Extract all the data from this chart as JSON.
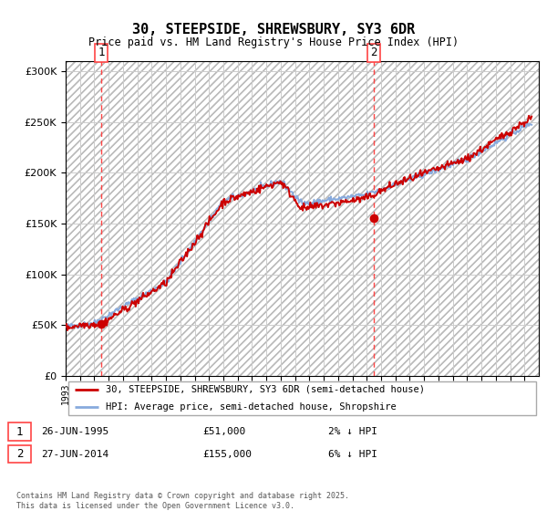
{
  "title": "30, STEEPSIDE, SHREWSBURY, SY3 6DR",
  "subtitle": "Price paid vs. HM Land Registry's House Price Index (HPI)",
  "ylim": [
    0,
    310000
  ],
  "yticks": [
    0,
    50000,
    100000,
    150000,
    200000,
    250000,
    300000
  ],
  "hatch_color": "#cccccc",
  "grid_color": "#dddddd",
  "bg_color": "#dce6f5",
  "sale1_year": 1995.48,
  "sale1_price": 51000,
  "sale2_year": 2014.48,
  "sale2_price": 155000,
  "vline_color": "#ff4444",
  "marker_color": "#cc0000",
  "legend_house_label": "30, STEEPSIDE, SHREWSBURY, SY3 6DR (semi-detached house)",
  "legend_hpi_label": "HPI: Average price, semi-detached house, Shropshire",
  "house_line_color": "#cc0000",
  "hpi_line_color": "#88aadd",
  "footnote": "Contains HM Land Registry data © Crown copyright and database right 2025.\nThis data is licensed under the Open Government Licence v3.0.",
  "xstart": 1993,
  "xend": 2026
}
